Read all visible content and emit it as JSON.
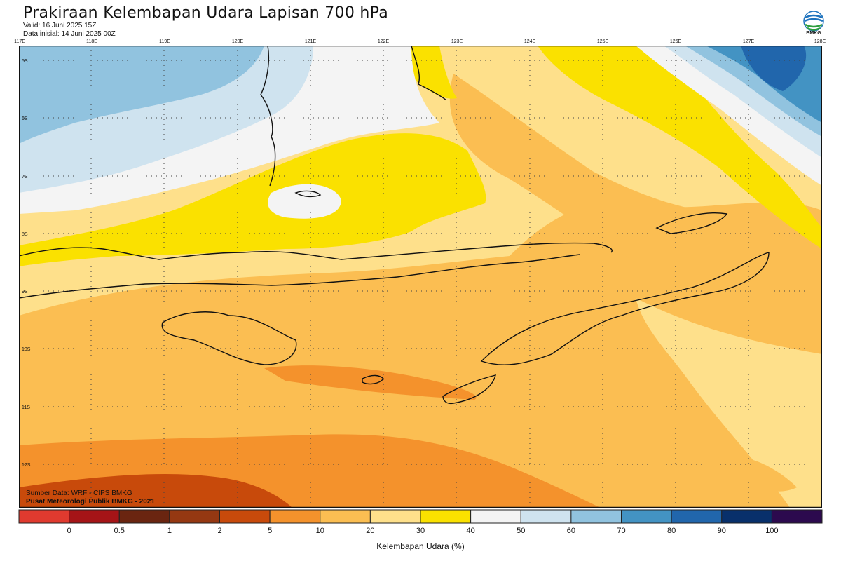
{
  "header": {
    "title": "Prakiraan Kelembapan Udara Lapisan 700 hPa",
    "valid": "Valid: 16 Juni 2025 15Z",
    "initial": "Data inisial: 14 Juni 2025 00Z"
  },
  "logo": {
    "text": "BMKG",
    "icon": "bmkg-logo-icon"
  },
  "map": {
    "lon_labels": [
      "117E",
      "118E",
      "119E",
      "120E",
      "121E",
      "122E",
      "123E",
      "124E",
      "125E",
      "126E",
      "127E",
      "128E"
    ],
    "lat_labels": [
      "5S",
      "6S",
      "7S",
      "8S",
      "9S",
      "10S",
      "11S",
      "12S"
    ],
    "grid": true
  },
  "credits": {
    "source": "Sumber Data: WRF - CIPS BMKG",
    "org": "Pusat Meteorologi Publik BMKG - 2021"
  },
  "colorbar": {
    "ticks": [
      "0",
      "0.5",
      "1",
      "2",
      "5",
      "10",
      "20",
      "30",
      "40",
      "50",
      "60",
      "70",
      "80",
      "90",
      "100"
    ],
    "colors": [
      "#e03a2f",
      "#a51417",
      "#6a2510",
      "#953812",
      "#c84a0b",
      "#f4922c",
      "#fbbe52",
      "#fee08b",
      "#fae100",
      "#f4f4f4",
      "#cfe3ef",
      "#91c3df",
      "#4393c3",
      "#2166ac",
      "#08306b",
      "#2c0a4e"
    ],
    "label": "Kelembapan Udara (%)"
  }
}
